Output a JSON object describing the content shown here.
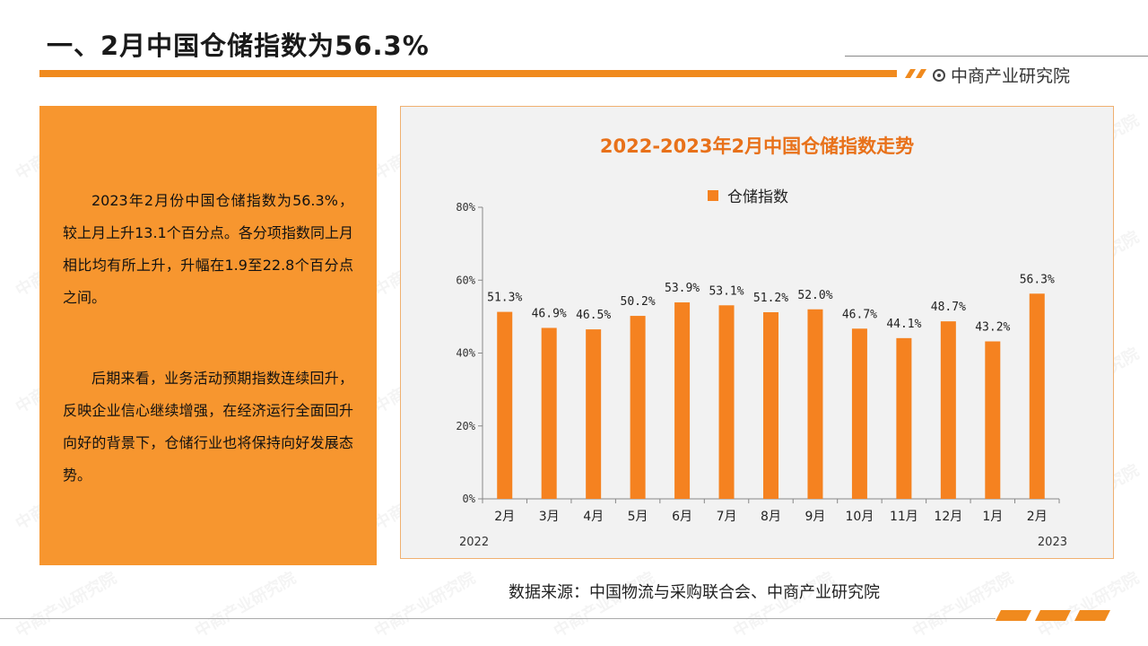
{
  "header": {
    "title": "一、2月中国仓储指数为56.3%",
    "brand": "中商产业研究院"
  },
  "text_panel": {
    "paragraphs": [
      "2023年2月份中国仓储指数为56.3%，较上月上升13.1个百分点。各分项指数同上月相比均有所上升，升幅在1.9至22.8个百分点之间。",
      "后期来看，业务活动预期指数连续回升，反映企业信心继续增强，在经济运行全面回升向好的背景下，仓储行业也将保持向好发展态势。"
    ]
  },
  "source": "数据来源：中国物流与采购联合会、中商产业研究院",
  "colors": {
    "accent": "#f08a1e",
    "bar": "#f58220",
    "title": "#e8711a",
    "panel": "#f7962f"
  },
  "chart_data": {
    "type": "bar",
    "title": "2022-2023年2月中国仓储指数走势",
    "legend": "仓储指数",
    "legend_position": "top-center",
    "categories": [
      "2月",
      "3月",
      "4月",
      "5月",
      "6月",
      "7月",
      "8月",
      "9月",
      "10月",
      "11月",
      "12月",
      "1月",
      "2月"
    ],
    "values": [
      51.3,
      46.9,
      46.5,
      50.2,
      53.9,
      53.1,
      51.2,
      52.0,
      46.7,
      44.1,
      48.7,
      43.2,
      56.3
    ],
    "data_labels": [
      "51.3%",
      "46.9%",
      "46.5%",
      "50.2%",
      "53.9%",
      "53.1%",
      "51.2%",
      "52.0%",
      "46.7%",
      "44.1%",
      "48.7%",
      "43.2%",
      "56.3%"
    ],
    "yticks": [
      "0%",
      "20%",
      "40%",
      "60%",
      "80%"
    ],
    "ylim": [
      0,
      80
    ],
    "year_labels": [
      "2022",
      "2023"
    ],
    "grid": false
  }
}
